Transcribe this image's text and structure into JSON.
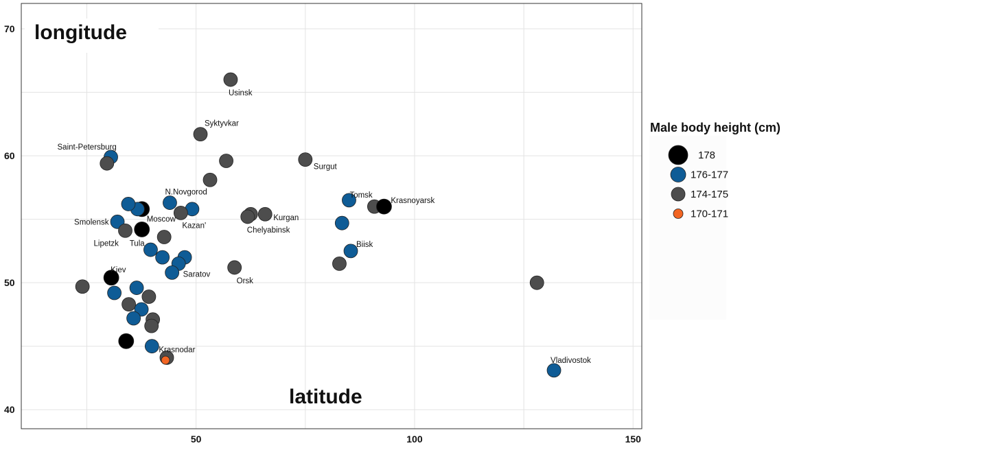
{
  "chart_data": {
    "type": "scatter",
    "title": "",
    "xlabel": "latitude",
    "ylabel": "longitude",
    "xlim": [
      10,
      152
    ],
    "ylim": [
      38.5,
      72
    ],
    "x_ticks": [
      50,
      100,
      150
    ],
    "y_ticks": [
      40,
      50,
      60,
      70
    ],
    "grid": true,
    "legend": {
      "title": "Male body height (cm)",
      "placement": "right",
      "entries": [
        {
          "group": "178",
          "label": "178",
          "color": "#000000"
        },
        {
          "group": "176-177",
          "label": "176-177",
          "color": "#0f5c96"
        },
        {
          "group": "174-175",
          "label": "174-175",
          "color": "#4d4d4d"
        },
        {
          "group": "170-171",
          "label": "170-171",
          "color": "#f26522"
        }
      ]
    },
    "points": [
      {
        "x": 57.9,
        "y": 66.0,
        "group": "174-175",
        "label": "Usinsk"
      },
      {
        "x": 51.0,
        "y": 61.7,
        "group": "174-175",
        "label": "Syktyvkar"
      },
      {
        "x": 56.9,
        "y": 59.6,
        "group": "174-175",
        "label": ""
      },
      {
        "x": 75.0,
        "y": 59.7,
        "group": "174-175",
        "label": "Surgut"
      },
      {
        "x": 53.2,
        "y": 58.1,
        "group": "174-175",
        "label": ""
      },
      {
        "x": 30.5,
        "y": 59.9,
        "group": "176-177",
        "label": "Saint-Petersburg"
      },
      {
        "x": 29.6,
        "y": 59.4,
        "group": "174-175",
        "label": ""
      },
      {
        "x": 44.0,
        "y": 56.3,
        "group": "176-177",
        "label": "N.Novgorod"
      },
      {
        "x": 49.1,
        "y": 55.8,
        "group": "176-177",
        "label": ""
      },
      {
        "x": 46.5,
        "y": 55.5,
        "group": "174-175",
        "label": "Kazan'"
      },
      {
        "x": 37.6,
        "y": 55.8,
        "group": "178",
        "label": "Moscow"
      },
      {
        "x": 36.6,
        "y": 55.8,
        "group": "176-177",
        "label": ""
      },
      {
        "x": 34.5,
        "y": 56.2,
        "group": "176-177",
        "label": ""
      },
      {
        "x": 32.0,
        "y": 54.8,
        "group": "176-177",
        "label": "Smolensk"
      },
      {
        "x": 37.6,
        "y": 54.2,
        "group": "178",
        "label": "Tula"
      },
      {
        "x": 33.8,
        "y": 54.1,
        "group": "174-175",
        "label": "Lipetzk"
      },
      {
        "x": 42.7,
        "y": 53.6,
        "group": "174-175",
        "label": ""
      },
      {
        "x": 39.6,
        "y": 52.6,
        "group": "176-177",
        "label": ""
      },
      {
        "x": 42.3,
        "y": 52.0,
        "group": "176-177",
        "label": ""
      },
      {
        "x": 47.4,
        "y": 52.0,
        "group": "176-177",
        "label": ""
      },
      {
        "x": 46.0,
        "y": 51.5,
        "group": "176-177",
        "label": ""
      },
      {
        "x": 44.5,
        "y": 50.8,
        "group": "176-177",
        "label": "Saratov"
      },
      {
        "x": 62.5,
        "y": 55.4,
        "group": "174-175",
        "label": ""
      },
      {
        "x": 61.8,
        "y": 55.2,
        "group": "174-175",
        "label": "Chelyabinsk"
      },
      {
        "x": 65.8,
        "y": 55.4,
        "group": "174-175",
        "label": "Kurgan"
      },
      {
        "x": 58.8,
        "y": 51.2,
        "group": "174-175",
        "label": "Orsk"
      },
      {
        "x": 85.0,
        "y": 56.5,
        "group": "176-177",
        "label": "Tomsk"
      },
      {
        "x": 90.8,
        "y": 56.0,
        "group": "174-175",
        "label": ""
      },
      {
        "x": 93.0,
        "y": 56.0,
        "group": "178",
        "label": "Krasnoyarsk"
      },
      {
        "x": 83.4,
        "y": 54.7,
        "group": "176-177",
        "label": ""
      },
      {
        "x": 85.4,
        "y": 52.5,
        "group": "176-177",
        "label": "Biisk"
      },
      {
        "x": 82.8,
        "y": 51.5,
        "group": "174-175",
        "label": ""
      },
      {
        "x": 30.6,
        "y": 50.4,
        "group": "178",
        "label": "Kiev"
      },
      {
        "x": 24.0,
        "y": 49.7,
        "group": "174-175",
        "label": ""
      },
      {
        "x": 31.3,
        "y": 49.2,
        "group": "176-177",
        "label": ""
      },
      {
        "x": 36.4,
        "y": 49.6,
        "group": "176-177",
        "label": ""
      },
      {
        "x": 39.2,
        "y": 48.9,
        "group": "174-175",
        "label": ""
      },
      {
        "x": 34.6,
        "y": 48.3,
        "group": "174-175",
        "label": ""
      },
      {
        "x": 37.5,
        "y": 47.9,
        "group": "176-177",
        "label": ""
      },
      {
        "x": 35.7,
        "y": 47.2,
        "group": "176-177",
        "label": ""
      },
      {
        "x": 40.1,
        "y": 47.1,
        "group": "174-175",
        "label": ""
      },
      {
        "x": 39.8,
        "y": 46.6,
        "group": "174-175",
        "label": ""
      },
      {
        "x": 34.0,
        "y": 45.4,
        "group": "178",
        "label": ""
      },
      {
        "x": 39.9,
        "y": 45.0,
        "group": "176-177",
        "label": "Krasnodar"
      },
      {
        "x": 43.3,
        "y": 44.1,
        "group": "174-175",
        "label": ""
      },
      {
        "x": 43.0,
        "y": 43.9,
        "group": "170-171",
        "label": ""
      },
      {
        "x": 128.0,
        "y": 50.0,
        "group": "174-175",
        "label": ""
      },
      {
        "x": 131.9,
        "y": 43.1,
        "group": "176-177",
        "label": "Vladivostok"
      }
    ]
  }
}
